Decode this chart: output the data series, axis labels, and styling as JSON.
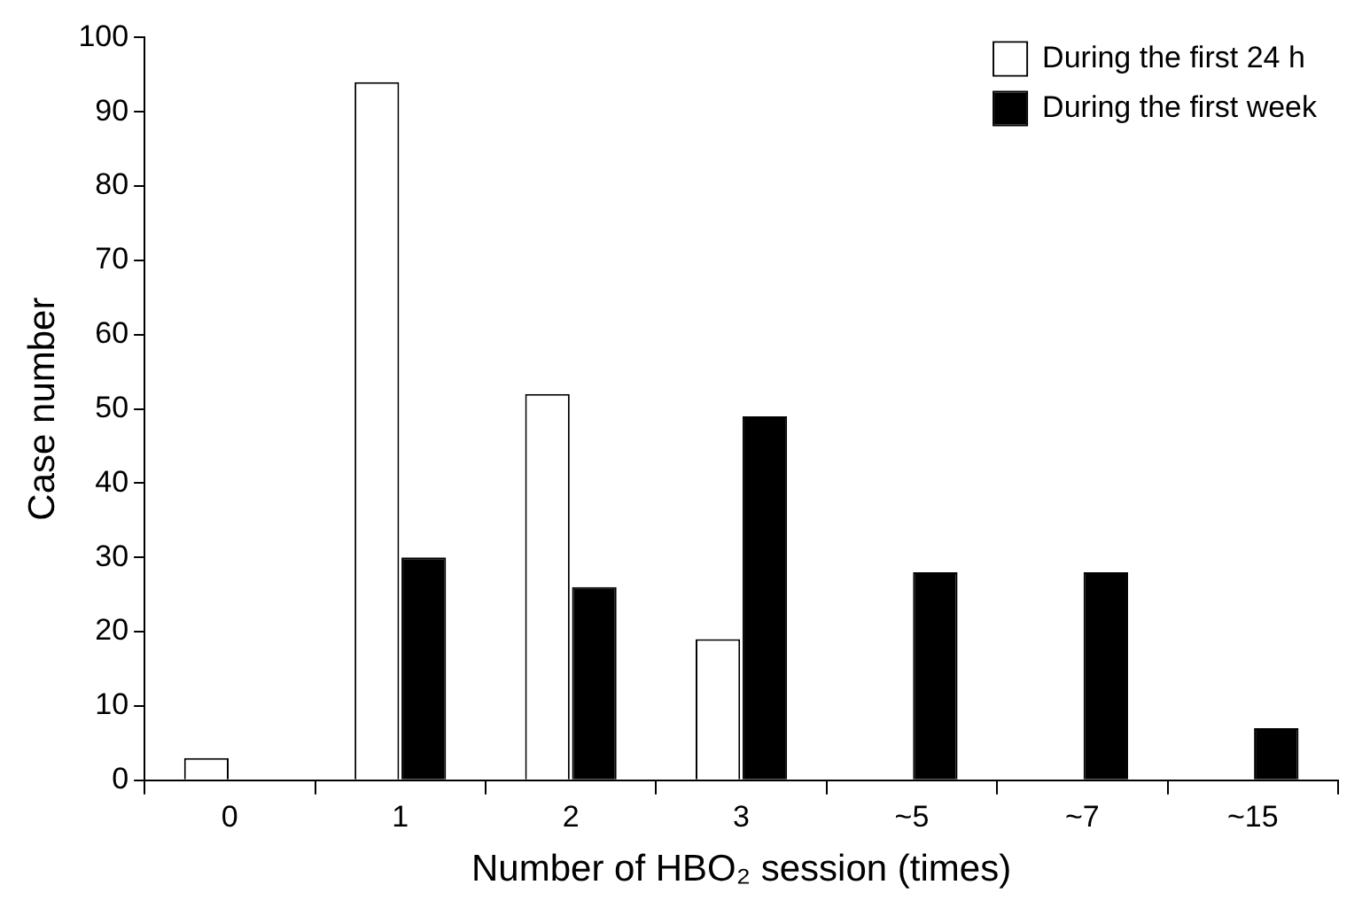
{
  "chart_data": {
    "type": "bar",
    "xlabel": "Number of HBO₂ session (times)",
    "ylabel": "Case number",
    "categories": [
      "0",
      "1",
      "2",
      "3",
      "~5",
      "~7",
      "~15"
    ],
    "series": [
      {
        "name": "During the first 24 h",
        "color": "#ffffff",
        "values": [
          3,
          94,
          52,
          19,
          null,
          null,
          null
        ]
      },
      {
        "name": "During the first week",
        "color": "#000000",
        "values": [
          null,
          30,
          26,
          49,
          28,
          28,
          7
        ]
      }
    ],
    "ylim": [
      0,
      100
    ],
    "yticks": [
      0,
      10,
      20,
      30,
      40,
      50,
      60,
      70,
      80,
      90,
      100
    ],
    "grid": false,
    "legend": "top right"
  }
}
